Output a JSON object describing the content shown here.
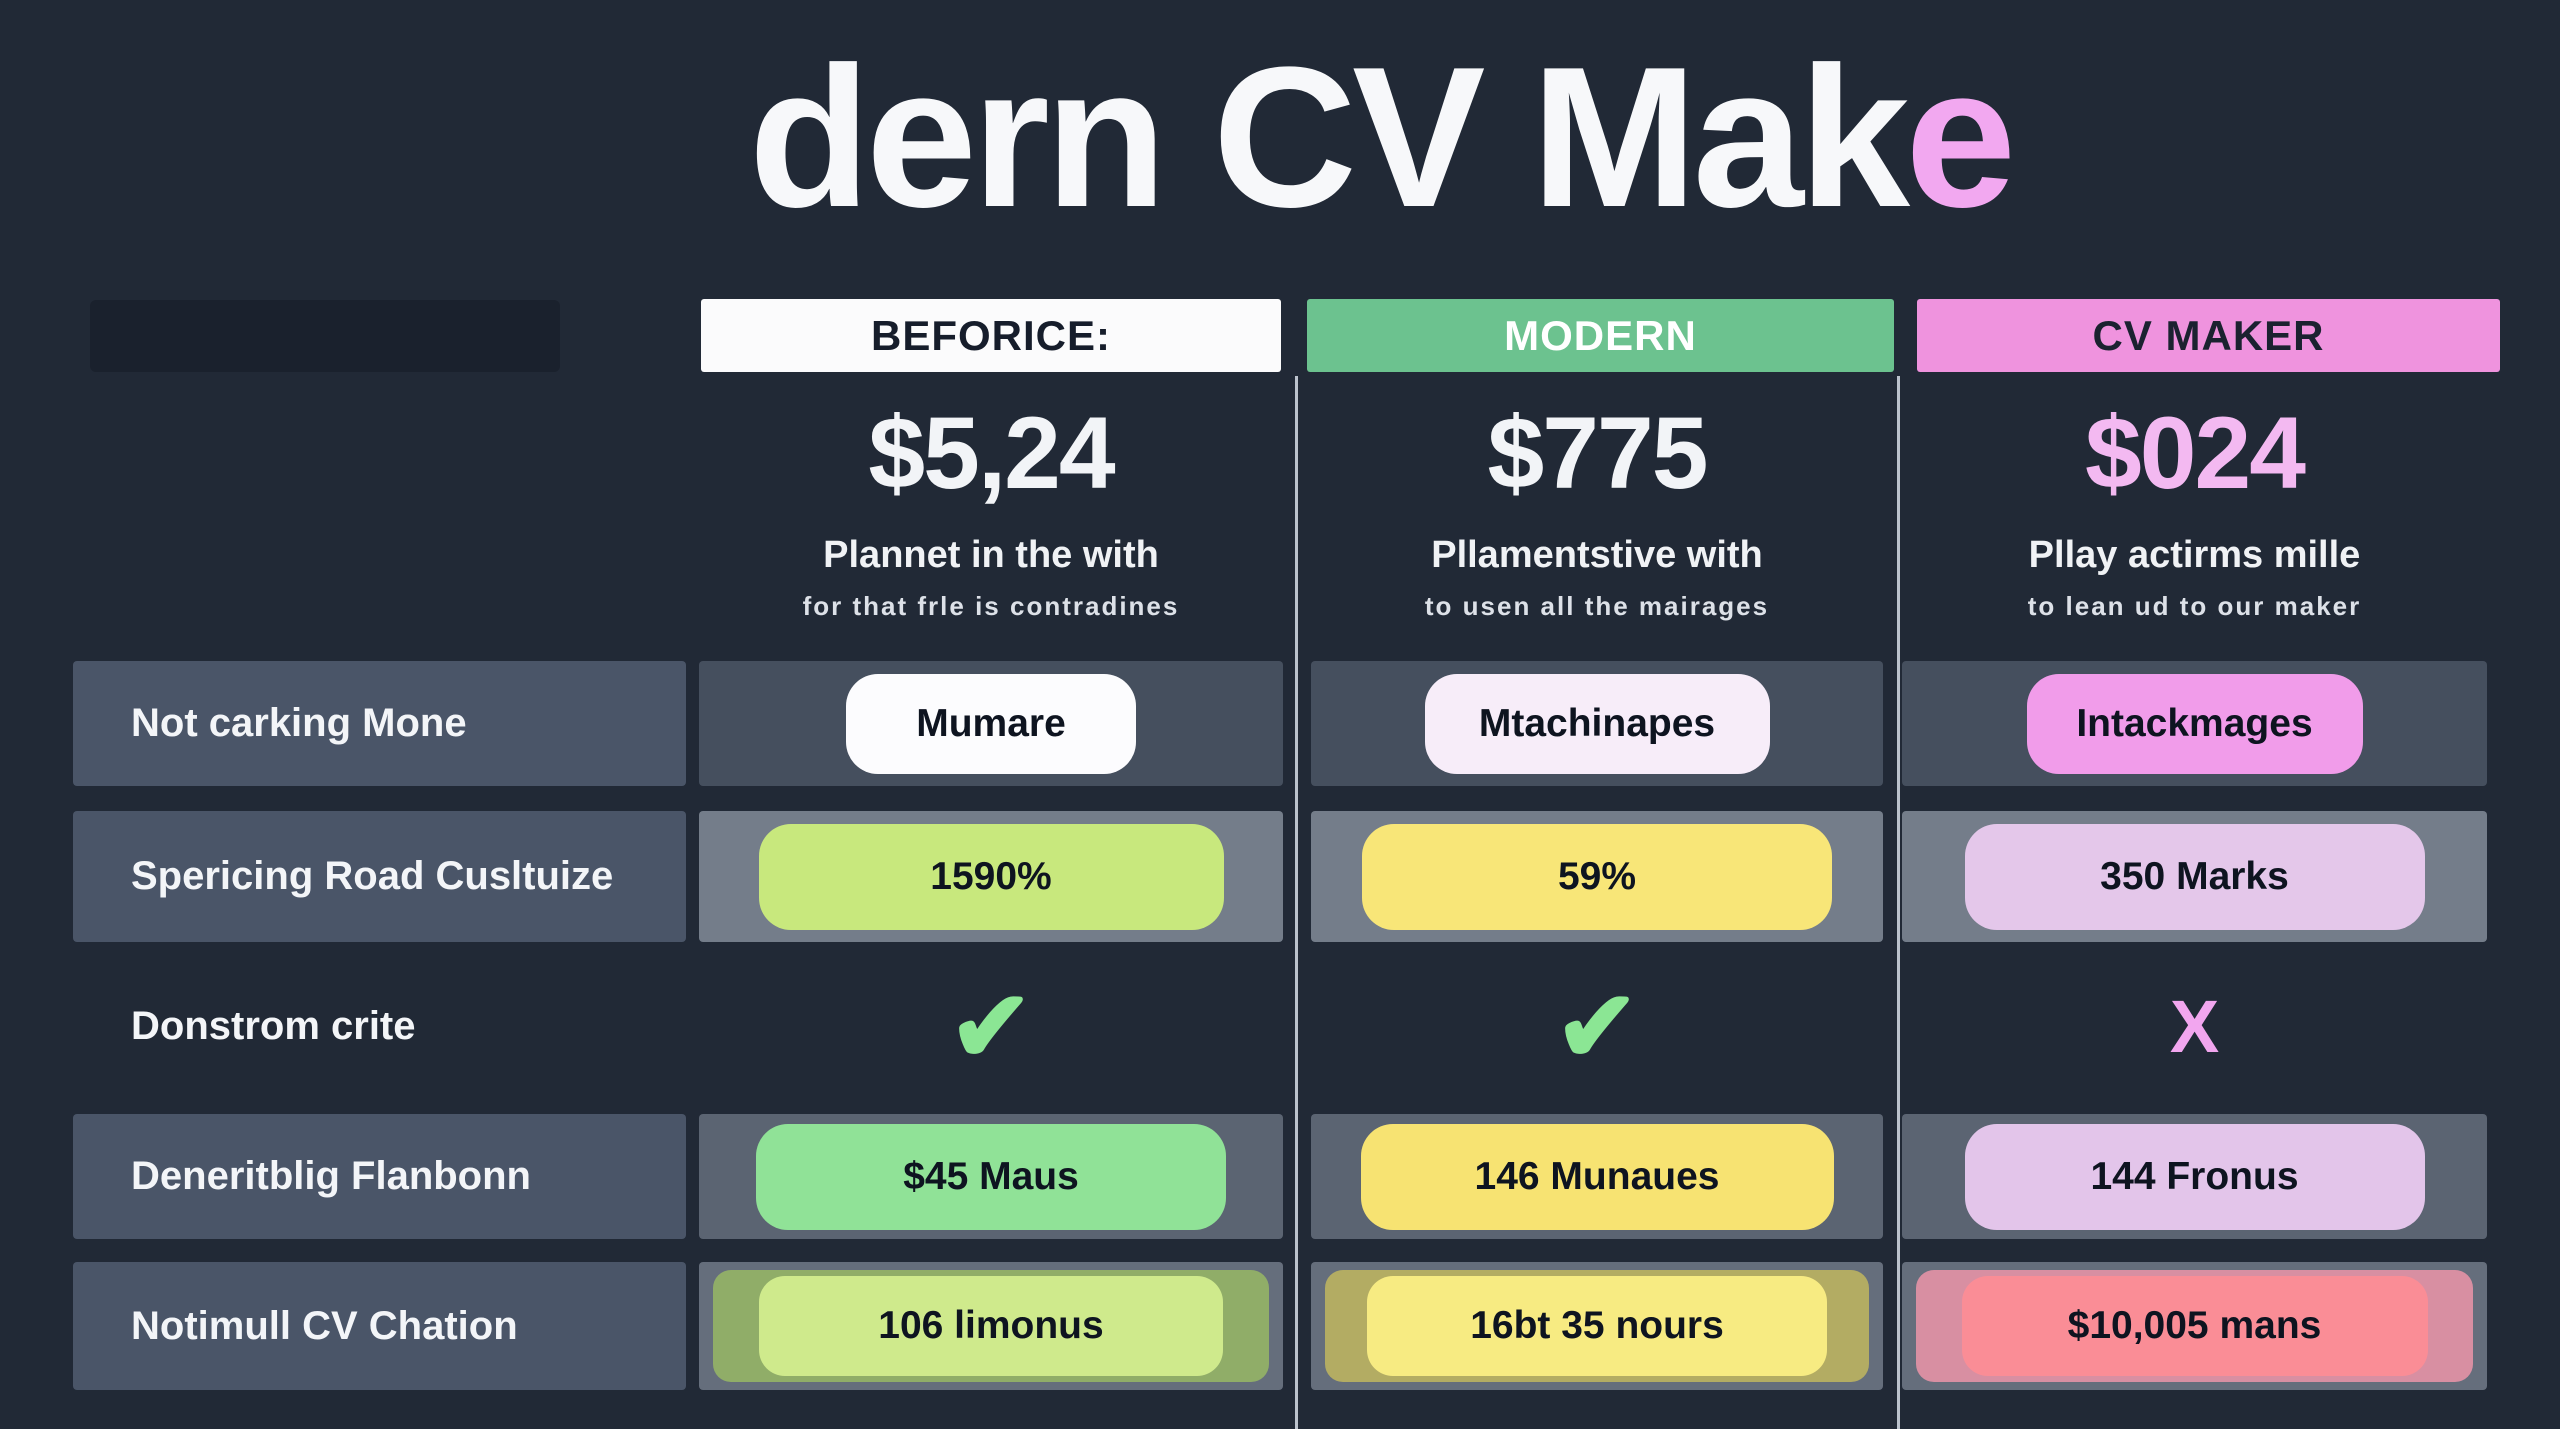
{
  "title": {
    "text_main": "dern CV Mak",
    "text_accent": "e"
  },
  "columns": [
    {
      "id": "beforice",
      "header": "BEFORICE:",
      "price": "$5,24",
      "subtitle": "Plannet in the with",
      "subnote": "for that frle is contradines",
      "header_bg": "#FBFBFC",
      "header_color": "#161D2B"
    },
    {
      "id": "modern",
      "header": "MODERN",
      "price": "$775",
      "subtitle": "Pllamentstive with",
      "subnote": "to usen all the mairages",
      "header_bg": "#6CC28F",
      "header_color": "#FFFFFF"
    },
    {
      "id": "cv-maker",
      "header": "CV MAKER",
      "price": "$024",
      "subtitle": "Pllay actirms mille",
      "subnote": "to lean ud to our maker",
      "header_bg": "#EF93DE",
      "header_color": "#1B2230",
      "price_color": "#F3B9F1"
    }
  ],
  "rows": [
    {
      "label": "Not carking Mone",
      "cells": [
        {
          "text": "Mumare",
          "bg": "#FCFCFE"
        },
        {
          "text": "Mtachinapes",
          "bg": "#F7EDF9"
        },
        {
          "text": "Intackmages",
          "bg": "#F19CEA"
        }
      ]
    },
    {
      "label": "Spericing Road Cusltuize",
      "cells": [
        {
          "text": "1590%",
          "bg": "#C8E87D"
        },
        {
          "text": "59%",
          "bg": "#F8E678"
        },
        {
          "text": "350 Marks",
          "bg": "#E4C7EA"
        }
      ]
    },
    {
      "label": "Donstrom crite",
      "cells": [
        {
          "type": "check",
          "glyph": "✔",
          "color": "#8BE694"
        },
        {
          "type": "check",
          "glyph": "✔",
          "color": "#8BE694"
        },
        {
          "type": "cross",
          "glyph": "X",
          "color": "#F2A6EF"
        }
      ]
    },
    {
      "label": "Deneritblig Flanbonn",
      "cells": [
        {
          "text": "$45 Maus",
          "bg": "#90E297"
        },
        {
          "text": "146 Munaues",
          "bg": "#F7E372"
        },
        {
          "text": "144 Fronus",
          "bg": "#E3C5EA"
        }
      ]
    },
    {
      "label": "Notimull CV Chation",
      "cells": [
        {
          "text": "106 limonus",
          "bg": "#CFEA8C",
          "outer_bg": "#90AD68"
        },
        {
          "text": "16bt 35 nours",
          "bg": "#F7EB82",
          "outer_bg": "#B3AC63"
        },
        {
          "text": "$10,005 mans",
          "bg": "#FA8D96",
          "outer_bg": "#D88FA2"
        }
      ]
    }
  ],
  "colors": {
    "background": "#212936",
    "title_text": "#F7F8FA",
    "title_accent_pink": "#F2A8F0",
    "label_box": "#4A5568",
    "divider_line": "#C9CFD9",
    "check_green": "#8BE694",
    "cross_pink": "#F2A6EF"
  },
  "chart_data": {
    "type": "table",
    "title": "dern CV Make",
    "columns": [
      "",
      "BEFORICE:",
      "MODERN",
      "CV MAKER"
    ],
    "column_prices": [
      "",
      "$5,24",
      "$775",
      "$024"
    ],
    "column_taglines": [
      "",
      "Plannet in the with — for that frle is contradines",
      "Pllamentstive with — to usen all the mairages",
      "Pllay actirms mille — to lean ud to our maker"
    ],
    "rows": [
      [
        "Not carking Mone",
        "Mumare",
        "Mtachinapes",
        "Intackmages"
      ],
      [
        "Spericing Road Cusltuize",
        "1590%",
        "59%",
        "350 Marks"
      ],
      [
        "Donstrom crite",
        "✔",
        "✔",
        "X"
      ],
      [
        "Deneritblig Flanbonn",
        "$45 Maus",
        "146 Munaues",
        "144 Fronus"
      ],
      [
        "Notimull CV Chation",
        "106 limonus",
        "16bt 35 nours",
        "$10,005 mans"
      ]
    ]
  }
}
